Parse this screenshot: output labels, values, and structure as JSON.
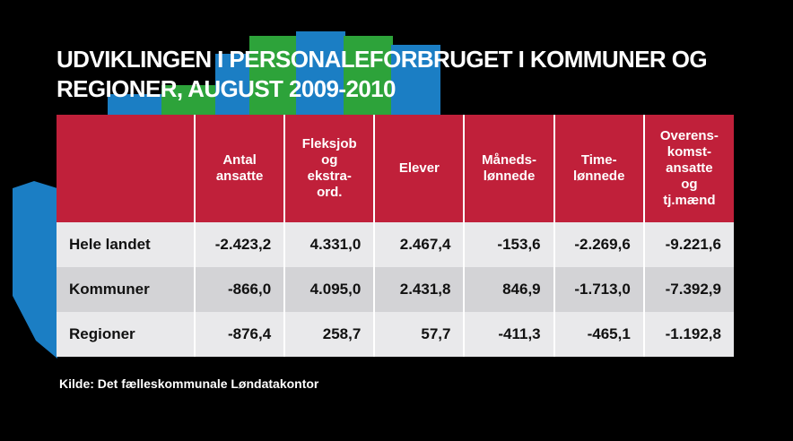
{
  "header": {
    "title": "UDVIKLINGEN I PERSONALEFORBRUGET I KOMMUNER OG REGIONER, AUGUST 2009-2010"
  },
  "table": {
    "columns": [
      "Antal\nansatte",
      "Fleksjob\nog\nekstra-\nord.",
      "Elever",
      "Måneds-\nlønnede",
      "Time-\nlønnede",
      "Overens-\nkomst-\nansatte\nog\ntj.mænd"
    ],
    "rows": [
      [
        "Hele landet",
        "-2.423,2",
        "4.331,0",
        "2.467,4",
        "-153,6",
        "-2.269,6",
        "-9.221,6"
      ],
      [
        "Kommuner",
        "-866,0",
        "4.095,0",
        "2.431,8",
        "846,9",
        "-1.713,0",
        "-7.392,9"
      ],
      [
        "Regioner",
        "-876,4",
        "258,7",
        "57,7",
        "-411,3",
        "-465,1",
        "-1.192,8"
      ]
    ]
  },
  "footer": {
    "source": "Kilde: Det fælleskommunale Løndatakontor"
  }
}
